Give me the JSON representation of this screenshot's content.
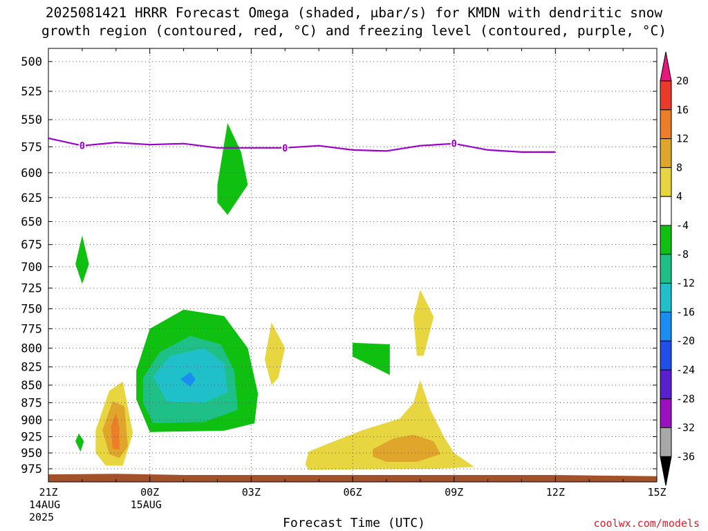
{
  "chart_data": {
    "type": "area",
    "title_line1": "2025081421 HRRR Forecast Omega (shaded, μbar/s) for KMDN with dendritic snow",
    "title_line2": "growth region (contoured, red, °C) and freezing level (contoured, purple, °C)",
    "xlabel": "Forecast Time (UTC)",
    "credit": "coolwx.com/models",
    "x_ticks": [
      "21Z",
      "00Z",
      "03Z",
      "06Z",
      "09Z",
      "12Z",
      "15Z"
    ],
    "x_hours": [
      0,
      3,
      6,
      9,
      12,
      15,
      18
    ],
    "x_sub": [
      [
        "14AUG",
        "2025"
      ],
      [
        "15AUG"
      ],
      [],
      [],
      [],
      [],
      []
    ],
    "y_ticks": [
      500,
      525,
      550,
      575,
      600,
      625,
      650,
      675,
      700,
      725,
      750,
      775,
      800,
      825,
      850,
      875,
      900,
      925,
      950,
      975
    ],
    "y_axis_inverted": true,
    "grid": true,
    "colorbar": {
      "labels": [
        "20",
        "16",
        "12",
        "8",
        "4",
        "-4",
        "-8",
        "-12",
        "-16",
        "-20",
        "-24",
        "-28",
        "-32",
        "-36"
      ],
      "colors": [
        "#e8177a",
        "#ea3a2a",
        "#ec7d2a",
        "#e0a52b",
        "#e8d640",
        "#ffffff",
        "#10c010",
        "#1fc087",
        "#1fc0c9",
        "#1a8ef0",
        "#1f4fe8",
        "#5a20d0",
        "#9a10c0",
        "#a8a8a8",
        "#000000"
      ]
    },
    "freezing_level": {
      "color": "#9a00c8",
      "label": "0",
      "label_hours": [
        1,
        7,
        12
      ],
      "points": [
        [
          0,
          567
        ],
        [
          1,
          574
        ],
        [
          2,
          571
        ],
        [
          3,
          573
        ],
        [
          4,
          572
        ],
        [
          5,
          576
        ],
        [
          6,
          576
        ],
        [
          7,
          576
        ],
        [
          8,
          574
        ],
        [
          9,
          578
        ],
        [
          10,
          579
        ],
        [
          11,
          574
        ],
        [
          12,
          572
        ],
        [
          13,
          578
        ],
        [
          14,
          580
        ],
        [
          15,
          580
        ]
      ]
    },
    "omega_regions": [
      {
        "value": -8,
        "color": "#10c010",
        "points": [
          [
            2.6,
            830
          ],
          [
            3.0,
            775
          ],
          [
            4.0,
            751
          ],
          [
            5.2,
            759
          ],
          [
            5.9,
            800
          ],
          [
            6.2,
            862
          ],
          [
            6.1,
            905
          ],
          [
            5.2,
            916
          ],
          [
            3.0,
            918
          ],
          [
            2.6,
            870
          ]
        ]
      },
      {
        "value": -12,
        "color": "#1fc087",
        "points": [
          [
            2.8,
            840
          ],
          [
            3.3,
            805
          ],
          [
            4.2,
            784
          ],
          [
            5.1,
            795
          ],
          [
            5.5,
            830
          ],
          [
            5.6,
            885
          ],
          [
            4.6,
            903
          ],
          [
            3.1,
            905
          ],
          [
            2.8,
            875
          ]
        ]
      },
      {
        "value": -16,
        "color": "#1fc0c9",
        "points": [
          [
            3.1,
            838
          ],
          [
            3.6,
            810
          ],
          [
            4.6,
            800
          ],
          [
            5.2,
            820
          ],
          [
            5.3,
            860
          ],
          [
            4.6,
            875
          ],
          [
            3.5,
            873
          ]
        ]
      },
      {
        "value": -20,
        "color": "#1a8ef0",
        "points": [
          [
            3.9,
            842
          ],
          [
            4.2,
            832
          ],
          [
            4.35,
            842
          ],
          [
            4.2,
            852
          ]
        ]
      },
      {
        "value": -8,
        "color": "#10c010",
        "points": [
          [
            5.0,
            612
          ],
          [
            5.3,
            553
          ],
          [
            5.7,
            580
          ],
          [
            5.9,
            612
          ],
          [
            5.3,
            643
          ],
          [
            5.0,
            630
          ]
        ]
      },
      {
        "value": -8,
        "color": "#10c010",
        "points": [
          [
            0.8,
            697
          ],
          [
            1.0,
            665
          ],
          [
            1.2,
            697
          ],
          [
            1.0,
            720
          ]
        ]
      },
      {
        "value": -8,
        "color": "#10c010",
        "points": [
          [
            0.8,
            932
          ],
          [
            0.9,
            920
          ],
          [
            1.05,
            932
          ],
          [
            0.95,
            948
          ]
        ]
      },
      {
        "value": -8,
        "color": "#10c010",
        "points": [
          [
            9.0,
            793
          ],
          [
            10.1,
            795
          ],
          [
            10.1,
            836
          ],
          [
            9.0,
            811
          ]
        ]
      },
      {
        "value": 4,
        "color": "#e8d640",
        "points": [
          [
            1.4,
            915
          ],
          [
            1.8,
            858
          ],
          [
            2.2,
            845
          ],
          [
            2.5,
            920
          ],
          [
            2.2,
            970
          ],
          [
            1.7,
            970
          ],
          [
            1.4,
            950
          ]
        ]
      },
      {
        "value": 8,
        "color": "#e0a52b",
        "points": [
          [
            1.6,
            915
          ],
          [
            1.9,
            873
          ],
          [
            2.25,
            880
          ],
          [
            2.35,
            940
          ],
          [
            2.1,
            958
          ],
          [
            1.8,
            952
          ]
        ]
      },
      {
        "value": 12,
        "color": "#ec7d2a",
        "points": [
          [
            1.85,
            910
          ],
          [
            2.0,
            890
          ],
          [
            2.1,
            912
          ],
          [
            2.1,
            945
          ],
          [
            1.9,
            943
          ]
        ]
      },
      {
        "value": 4,
        "color": "#e8d640",
        "points": [
          [
            6.4,
            815
          ],
          [
            6.6,
            767
          ],
          [
            7.0,
            800
          ],
          [
            6.8,
            840
          ],
          [
            6.6,
            850
          ]
        ]
      },
      {
        "value": 4,
        "color": "#e8d640",
        "points": [
          [
            10.8,
            760
          ],
          [
            11.0,
            727
          ],
          [
            11.4,
            760
          ],
          [
            11.1,
            810
          ],
          [
            10.9,
            810
          ]
        ]
      },
      {
        "value": 4,
        "color": "#e8d640",
        "points": [
          [
            7.6,
            968
          ],
          [
            7.7,
            948
          ],
          [
            8.3,
            935
          ],
          [
            9.3,
            915
          ],
          [
            10.4,
            898
          ],
          [
            10.8,
            875
          ],
          [
            11.0,
            843
          ],
          [
            11.3,
            885
          ],
          [
            11.7,
            925
          ],
          [
            12.0,
            950
          ],
          [
            12.6,
            972
          ],
          [
            11.5,
            975
          ],
          [
            9.0,
            976
          ],
          [
            7.7,
            977
          ]
        ]
      },
      {
        "value": 8,
        "color": "#e0a52b",
        "points": [
          [
            9.6,
            944
          ],
          [
            10.2,
            928
          ],
          [
            10.8,
            922
          ],
          [
            11.4,
            932
          ],
          [
            11.6,
            952
          ],
          [
            10.9,
            964
          ],
          [
            10.0,
            964
          ],
          [
            9.6,
            956
          ]
        ]
      }
    ],
    "terrain": {
      "color": "#a2522a",
      "points": [
        [
          0,
          984
        ],
        [
          2,
          983
        ],
        [
          4,
          985
        ],
        [
          8,
          985
        ],
        [
          15,
          985
        ],
        [
          18,
          987
        ]
      ]
    }
  }
}
